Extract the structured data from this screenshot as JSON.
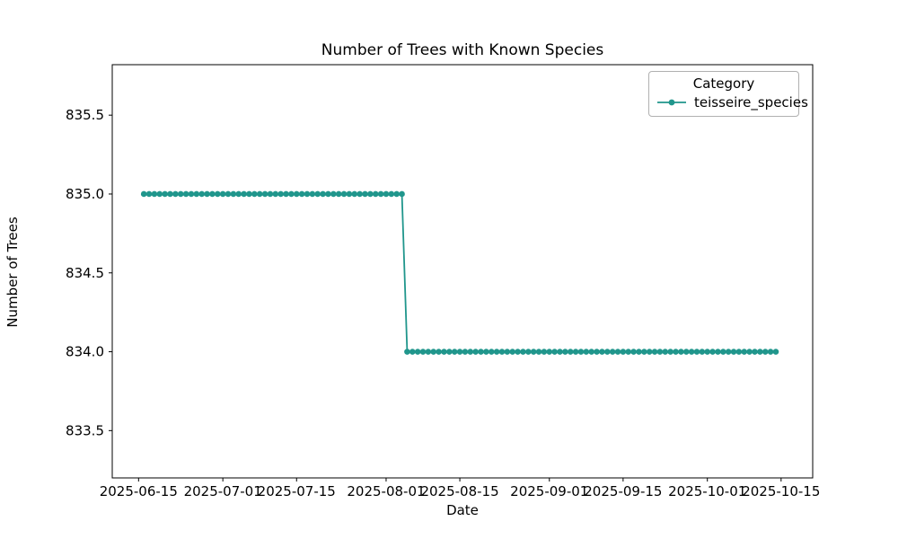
{
  "chart_data": {
    "type": "line",
    "title": "Number of Trees with Known Species",
    "xlabel": "Date",
    "ylabel": "Number of Trees",
    "series": [
      {
        "name": "teisseire_species",
        "color": "#20968c",
        "marker": "circle",
        "frequency": "daily",
        "segments": [
          {
            "start": "2025-06-16",
            "end": "2025-08-04",
            "value": 835.0
          },
          {
            "start": "2025-08-05",
            "end": "2025-10-14",
            "value": 834.0
          }
        ]
      }
    ],
    "x_ticks": [
      "2025-06-15",
      "2025-07-01",
      "2025-07-15",
      "2025-08-01",
      "2025-08-15",
      "2025-09-01",
      "2025-09-15",
      "2025-10-01",
      "2025-10-15"
    ],
    "y_ticks": [
      833.5,
      834.0,
      834.5,
      835.0,
      835.5
    ],
    "xlim": [
      "2025-06-10",
      "2025-10-21"
    ],
    "ylim": [
      833.2,
      835.82
    ],
    "grid": false,
    "legend": {
      "title": "Category",
      "position": "upper right",
      "entries": [
        "teisseire_species"
      ]
    }
  },
  "colors": {
    "line": "#20968c",
    "axis": "#000000",
    "tick_text": "#000000",
    "legend_border": "#b0b0b0",
    "background": "#ffffff"
  }
}
